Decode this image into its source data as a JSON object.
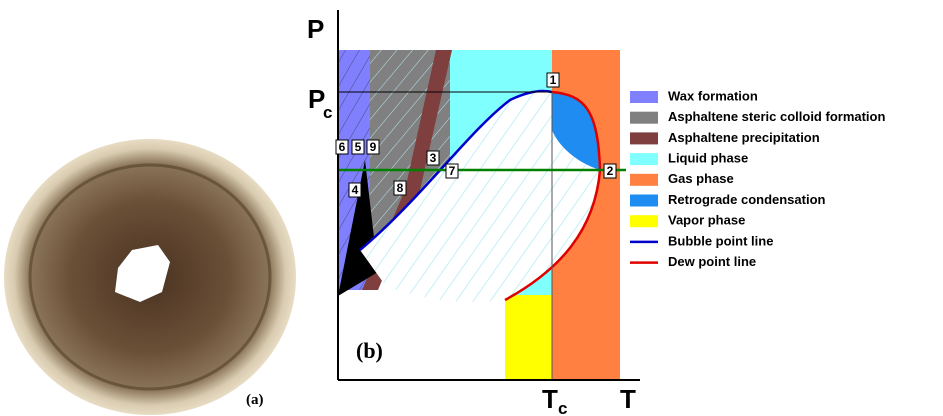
{
  "panel_a": {
    "label": "(a)"
  },
  "panel_b": {
    "label": "(b)",
    "axes": {
      "y": "P",
      "pc": "P",
      "pc_sub": "c",
      "tc": "T",
      "tc_sub": "c",
      "x": "T"
    },
    "points": [
      "1",
      "2",
      "3",
      "4",
      "5",
      "6",
      "7",
      "8",
      "9"
    ],
    "legend": [
      {
        "label": "Wax formation",
        "color": "#8080ff",
        "marker": "rect"
      },
      {
        "label": "Asphaltene steric colloid formation",
        "color": "#808080",
        "marker": "rect"
      },
      {
        "label": "Asphaltene precipitation",
        "color": "#7f3f3f",
        "marker": "rect"
      },
      {
        "label": "Liquid phase",
        "color": "#80ffff",
        "marker": "rect"
      },
      {
        "label": "Gas phase",
        "color": "#ff8040",
        "marker": "rect"
      },
      {
        "label": "Retrograde condensation",
        "color": "#1e8cf0",
        "marker": "rect"
      },
      {
        "label": "Vapor phase",
        "color": "#ffff00",
        "marker": "rect"
      },
      {
        "label": "Bubble point line",
        "color": "#0000cc",
        "marker": "line"
      },
      {
        "label": "Dew point line",
        "color": "#e00000",
        "marker": "line"
      }
    ]
  }
}
